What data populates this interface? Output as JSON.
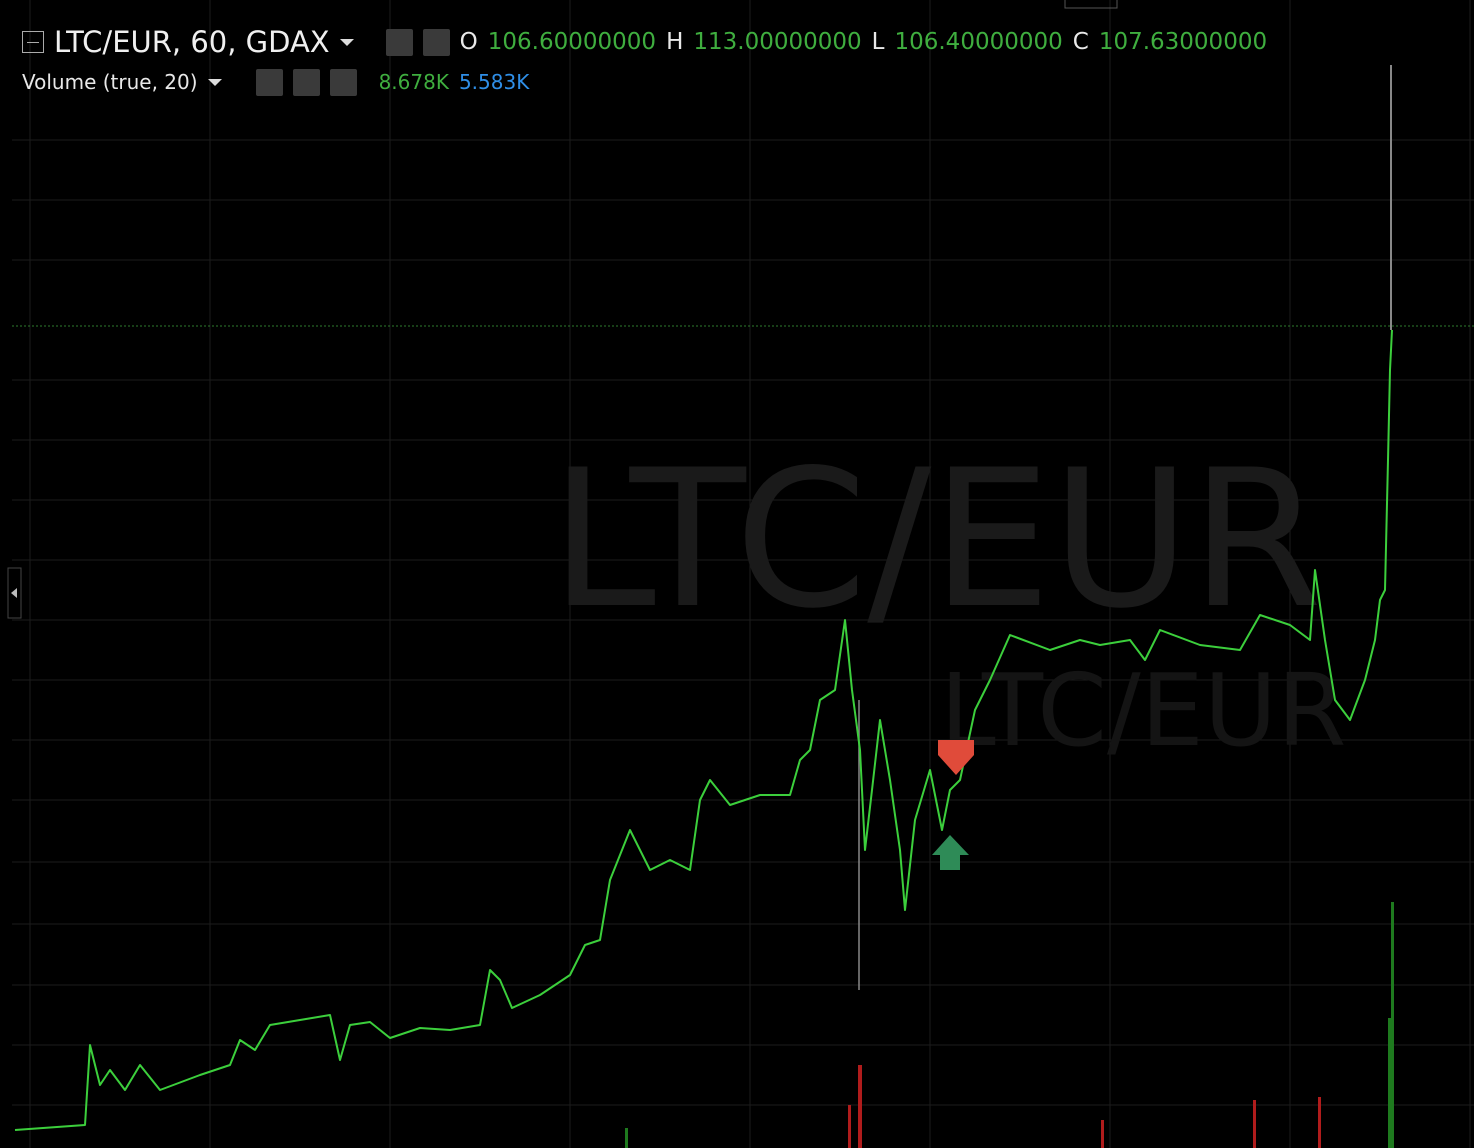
{
  "header": {
    "symbol": "LTC/EUR, 60, GDAX",
    "ohlc": [
      {
        "label": "O",
        "value": "106.60000000"
      },
      {
        "label": "H",
        "value": "113.00000000"
      },
      {
        "label": "L",
        "value": "106.40000000"
      },
      {
        "label": "C",
        "value": "107.63000000"
      }
    ]
  },
  "volume": {
    "title": "Volume (true, 20)",
    "values": [
      "8.678K",
      "5.583K"
    ]
  },
  "watermark": {
    "large": "LTC/EUR",
    "small": "LTC/EUR"
  }
}
